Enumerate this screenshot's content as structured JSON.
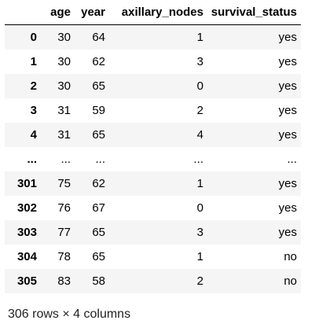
{
  "table": {
    "index_header": "",
    "columns": [
      "age",
      "year",
      "axillary_nodes",
      "survival_status"
    ],
    "rows": [
      {
        "index": "0",
        "cells": [
          "30",
          "64",
          "1",
          "yes"
        ]
      },
      {
        "index": "1",
        "cells": [
          "30",
          "62",
          "3",
          "yes"
        ]
      },
      {
        "index": "2",
        "cells": [
          "30",
          "65",
          "0",
          "yes"
        ]
      },
      {
        "index": "3",
        "cells": [
          "31",
          "59",
          "2",
          "yes"
        ]
      },
      {
        "index": "4",
        "cells": [
          "31",
          "65",
          "4",
          "yes"
        ]
      },
      {
        "index": "...",
        "cells": [
          "...",
          "...",
          "...",
          "..."
        ]
      },
      {
        "index": "301",
        "cells": [
          "75",
          "62",
          "1",
          "yes"
        ]
      },
      {
        "index": "302",
        "cells": [
          "76",
          "67",
          "0",
          "yes"
        ]
      },
      {
        "index": "303",
        "cells": [
          "77",
          "65",
          "3",
          "yes"
        ]
      },
      {
        "index": "304",
        "cells": [
          "78",
          "65",
          "1",
          "no"
        ]
      },
      {
        "index": "305",
        "cells": [
          "83",
          "58",
          "2",
          "no"
        ]
      }
    ]
  },
  "summary": "306 rows × 4 columns",
  "colors": {
    "stripe": "#f5f5f5",
    "header_rule": "#000000",
    "background": "#ffffff"
  }
}
